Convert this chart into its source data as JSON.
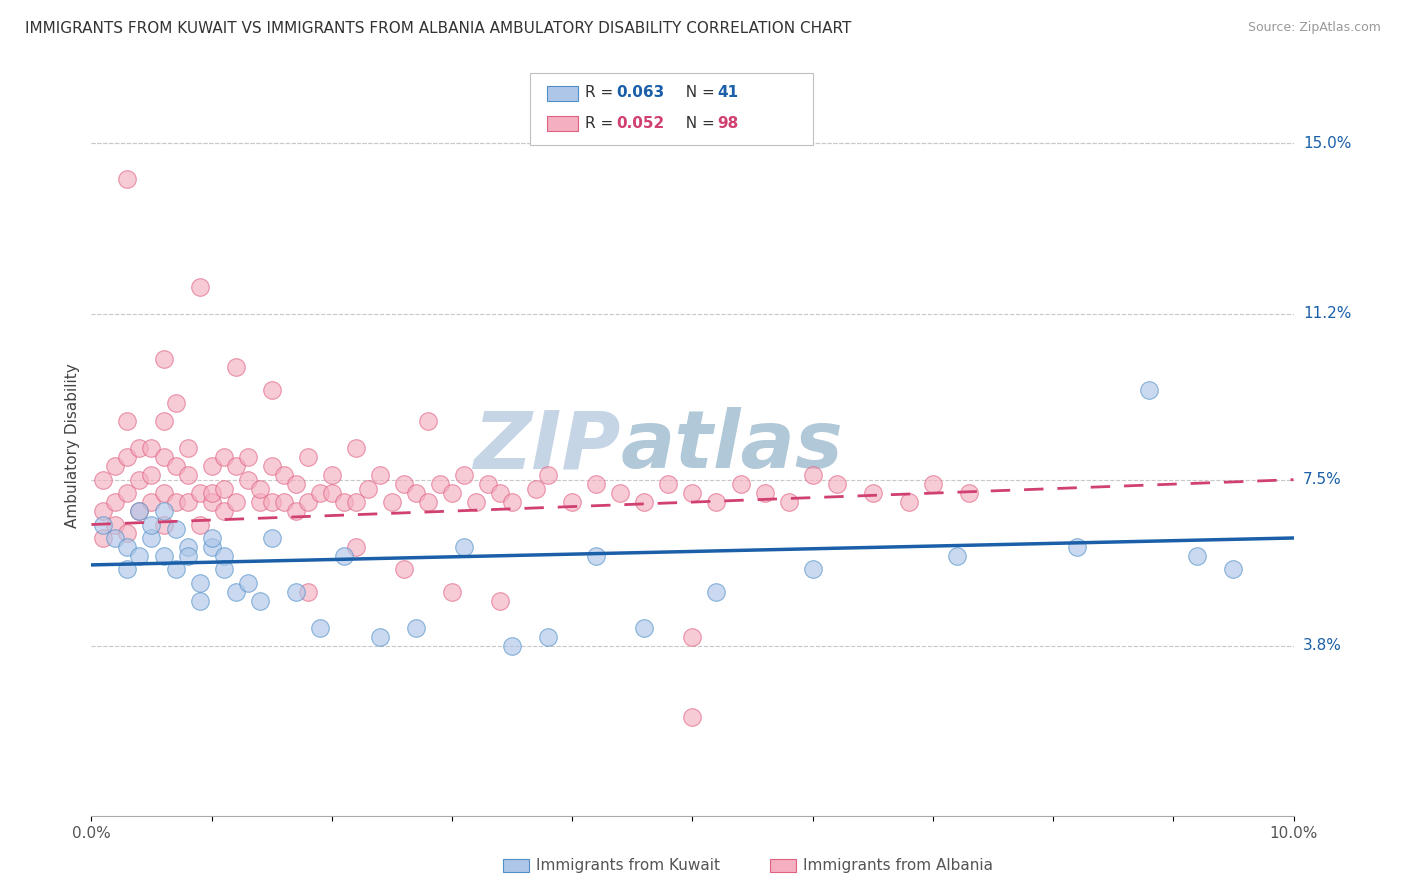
{
  "title": "IMMIGRANTS FROM KUWAIT VS IMMIGRANTS FROM ALBANIA AMBULATORY DISABILITY CORRELATION CHART",
  "source": "Source: ZipAtlas.com",
  "ylabel": "Ambulatory Disability",
  "xlim": [
    0.0,
    0.1
  ],
  "ylim": [
    0.0,
    0.165
  ],
  "ytick_positions": [
    0.038,
    0.075,
    0.112,
    0.15
  ],
  "ytick_labels": [
    "3.8%",
    "7.5%",
    "11.2%",
    "15.0%"
  ],
  "legend_r1": "0.063",
  "legend_n1": "41",
  "legend_r2": "0.052",
  "legend_n2": "98",
  "color_kuwait_fill": "#aec6e8",
  "color_albania_fill": "#f4afc0",
  "color_kuwait_edge": "#5090c8",
  "color_albania_edge": "#e06080",
  "line_color_kuwait": "#1a5fa8",
  "line_color_albania": "#d04070",
  "background_color": "#ffffff",
  "grid_color": "#c8c8c8",
  "title_fontsize": 11,
  "tick_fontsize": 11,
  "watermark_zip_color": "#c8d8e8",
  "watermark_atlas_color": "#b8ccd8",
  "kuwait_x": [
    0.001,
    0.002,
    0.003,
    0.003,
    0.004,
    0.004,
    0.005,
    0.005,
    0.006,
    0.006,
    0.007,
    0.007,
    0.008,
    0.008,
    0.009,
    0.009,
    0.01,
    0.01,
    0.011,
    0.011,
    0.012,
    0.013,
    0.014,
    0.015,
    0.017,
    0.019,
    0.021,
    0.024,
    0.027,
    0.031,
    0.035,
    0.038,
    0.042,
    0.046,
    0.052,
    0.06,
    0.072,
    0.082,
    0.088,
    0.092,
    0.095
  ],
  "kuwait_y": [
    0.065,
    0.062,
    0.06,
    0.055,
    0.058,
    0.068,
    0.062,
    0.065,
    0.058,
    0.068,
    0.064,
    0.055,
    0.06,
    0.058,
    0.052,
    0.048,
    0.06,
    0.062,
    0.058,
    0.055,
    0.05,
    0.052,
    0.048,
    0.062,
    0.05,
    0.042,
    0.058,
    0.04,
    0.042,
    0.06,
    0.038,
    0.04,
    0.058,
    0.042,
    0.05,
    0.055,
    0.058,
    0.06,
    0.095,
    0.058,
    0.055
  ],
  "albania_x": [
    0.001,
    0.001,
    0.001,
    0.002,
    0.002,
    0.002,
    0.003,
    0.003,
    0.003,
    0.003,
    0.004,
    0.004,
    0.004,
    0.005,
    0.005,
    0.005,
    0.006,
    0.006,
    0.006,
    0.006,
    0.007,
    0.007,
    0.007,
    0.008,
    0.008,
    0.008,
    0.009,
    0.009,
    0.01,
    0.01,
    0.01,
    0.011,
    0.011,
    0.011,
    0.012,
    0.012,
    0.013,
    0.013,
    0.014,
    0.014,
    0.015,
    0.015,
    0.016,
    0.016,
    0.017,
    0.017,
    0.018,
    0.018,
    0.019,
    0.02,
    0.02,
    0.021,
    0.022,
    0.023,
    0.024,
    0.025,
    0.026,
    0.027,
    0.028,
    0.029,
    0.03,
    0.031,
    0.032,
    0.033,
    0.034,
    0.035,
    0.037,
    0.038,
    0.04,
    0.042,
    0.044,
    0.046,
    0.048,
    0.05,
    0.052,
    0.054,
    0.056,
    0.058,
    0.06,
    0.062,
    0.065,
    0.068,
    0.07,
    0.073,
    0.003,
    0.006,
    0.009,
    0.012,
    0.015,
    0.018,
    0.022,
    0.026,
    0.03,
    0.034,
    0.022,
    0.028,
    0.05,
    0.05
  ],
  "albania_y": [
    0.062,
    0.068,
    0.075,
    0.07,
    0.078,
    0.065,
    0.063,
    0.072,
    0.08,
    0.088,
    0.068,
    0.075,
    0.082,
    0.07,
    0.076,
    0.082,
    0.072,
    0.08,
    0.088,
    0.065,
    0.07,
    0.078,
    0.092,
    0.07,
    0.076,
    0.082,
    0.065,
    0.072,
    0.07,
    0.078,
    0.072,
    0.08,
    0.068,
    0.073,
    0.078,
    0.07,
    0.08,
    0.075,
    0.07,
    0.073,
    0.078,
    0.07,
    0.076,
    0.07,
    0.068,
    0.074,
    0.08,
    0.07,
    0.072,
    0.076,
    0.072,
    0.07,
    0.07,
    0.073,
    0.076,
    0.07,
    0.074,
    0.072,
    0.07,
    0.074,
    0.072,
    0.076,
    0.07,
    0.074,
    0.072,
    0.07,
    0.073,
    0.076,
    0.07,
    0.074,
    0.072,
    0.07,
    0.074,
    0.072,
    0.07,
    0.074,
    0.072,
    0.07,
    0.076,
    0.074,
    0.072,
    0.07,
    0.074,
    0.072,
    0.142,
    0.102,
    0.118,
    0.1,
    0.095,
    0.05,
    0.06,
    0.055,
    0.05,
    0.048,
    0.082,
    0.088,
    0.04,
    0.022
  ],
  "kuwait_trend": [
    0.056,
    0.062
  ],
  "albania_trend": [
    0.065,
    0.075
  ]
}
